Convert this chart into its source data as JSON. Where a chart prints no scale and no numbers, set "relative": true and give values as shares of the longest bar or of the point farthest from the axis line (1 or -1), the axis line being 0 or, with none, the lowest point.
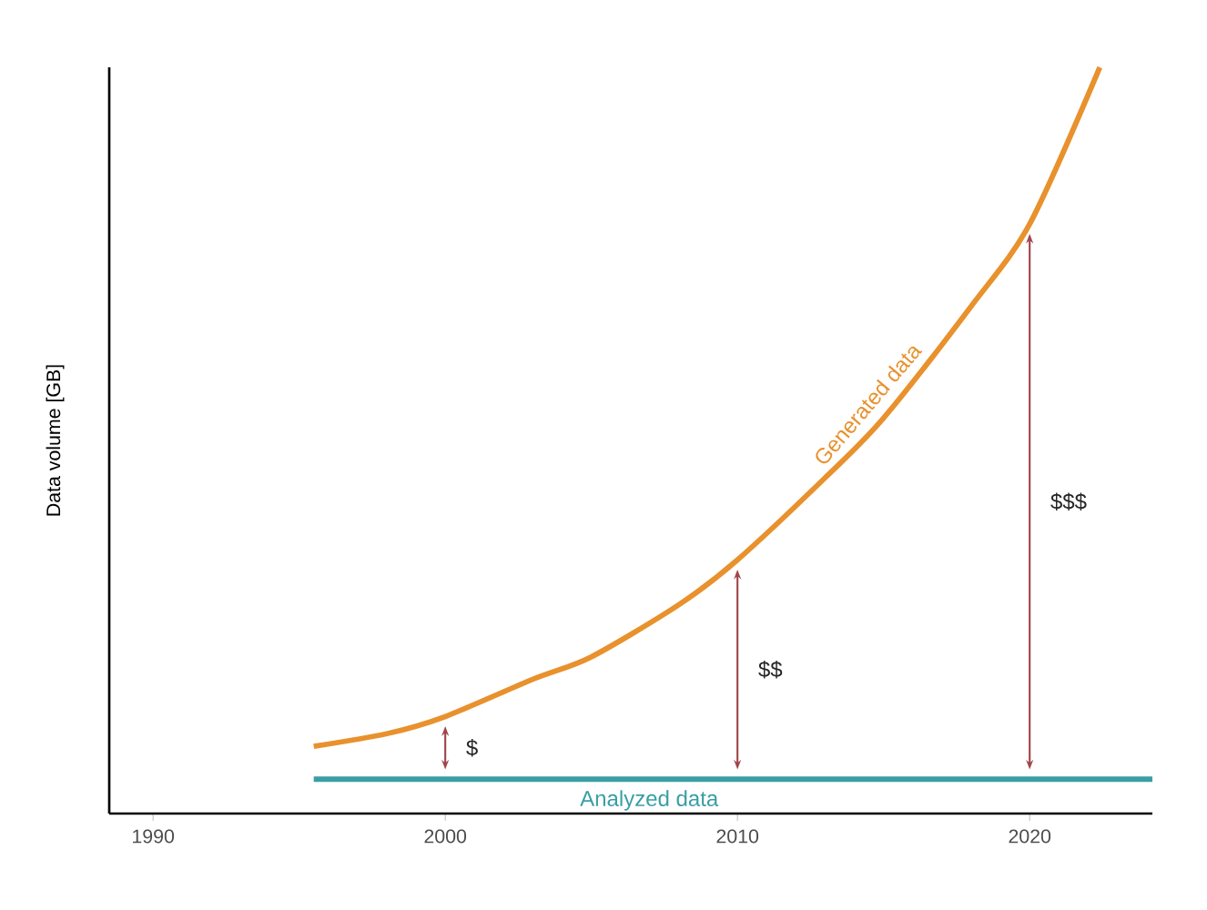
{
  "chart_data": {
    "type": "line",
    "relative": true,
    "ylabel": "Data volume [GB]",
    "xlim": [
      1988.5,
      2024.2
    ],
    "xticks": [
      1990,
      2000,
      2010,
      2020
    ],
    "series": [
      {
        "name": "Generated data",
        "color": "#e8912d",
        "x": [
          1995.5,
          1998,
          2000,
          2003,
          2005,
          2008,
          2010,
          2013,
          2015,
          2018,
          2020,
          2022.4
        ],
        "values": [
          0.09,
          0.107,
          0.13,
          0.18,
          0.21,
          0.28,
          0.34,
          0.45,
          0.53,
          0.68,
          0.79,
          1.0
        ]
      },
      {
        "name": "Analyzed data",
        "type": "line",
        "color": "#3a9ea5",
        "x": [
          1995.5,
          2024.2
        ],
        "values": [
          0.046,
          0.046
        ]
      }
    ],
    "annotations": [
      "$",
      "$$",
      "$$$"
    ]
  }
}
